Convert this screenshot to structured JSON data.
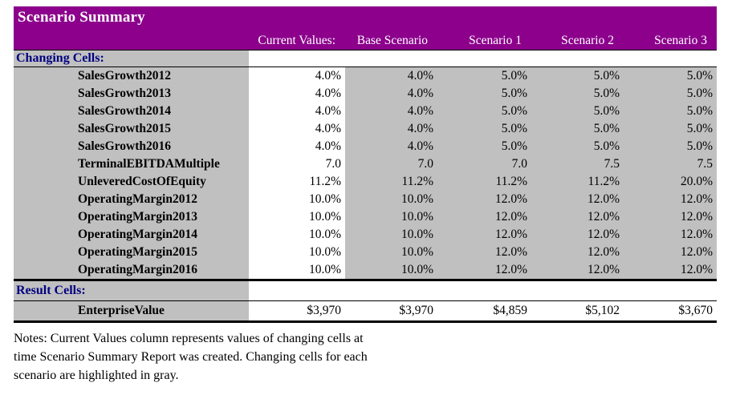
{
  "report": {
    "title": "Scenario Summary",
    "column_headers": [
      "Current Values:",
      "Base Scenario",
      "Scenario 1",
      "Scenario 2",
      "Scenario 3"
    ],
    "sections": [
      {
        "label": "Changing Cells:",
        "highlight_values": true,
        "rows": [
          {
            "label": "SalesGrowth2012",
            "values": [
              "4.0%",
              "4.0%",
              "5.0%",
              "5.0%",
              "5.0%"
            ]
          },
          {
            "label": "SalesGrowth2013",
            "values": [
              "4.0%",
              "4.0%",
              "5.0%",
              "5.0%",
              "5.0%"
            ]
          },
          {
            "label": "SalesGrowth2014",
            "values": [
              "4.0%",
              "4.0%",
              "5.0%",
              "5.0%",
              "5.0%"
            ]
          },
          {
            "label": "SalesGrowth2015",
            "values": [
              "4.0%",
              "4.0%",
              "5.0%",
              "5.0%",
              "5.0%"
            ]
          },
          {
            "label": "SalesGrowth2016",
            "values": [
              "4.0%",
              "4.0%",
              "5.0%",
              "5.0%",
              "5.0%"
            ]
          },
          {
            "label": "TerminalEBITDAMultiple",
            "values": [
              "7.0",
              "7.0",
              "7.0",
              "7.5",
              "7.5"
            ]
          },
          {
            "label": "UnleveredCostOfEquity",
            "values": [
              "11.2%",
              "11.2%",
              "11.2%",
              "11.2%",
              "20.0%"
            ]
          },
          {
            "label": "OperatingMargin2012",
            "values": [
              "10.0%",
              "10.0%",
              "12.0%",
              "12.0%",
              "12.0%"
            ]
          },
          {
            "label": "OperatingMargin2013",
            "values": [
              "10.0%",
              "10.0%",
              "12.0%",
              "12.0%",
              "12.0%"
            ]
          },
          {
            "label": "OperatingMargin2014",
            "values": [
              "10.0%",
              "10.0%",
              "12.0%",
              "12.0%",
              "12.0%"
            ]
          },
          {
            "label": "OperatingMargin2015",
            "values": [
              "10.0%",
              "10.0%",
              "12.0%",
              "12.0%",
              "12.0%"
            ]
          },
          {
            "label": "OperatingMargin2016",
            "values": [
              "10.0%",
              "10.0%",
              "12.0%",
              "12.0%",
              "12.0%"
            ]
          }
        ]
      },
      {
        "label": "Result Cells:",
        "highlight_values": false,
        "rows": [
          {
            "label": "EnterpriseValue",
            "values": [
              "$3,970",
              "$3,970",
              "$4,859",
              "$5,102",
              "$3,670"
            ]
          }
        ]
      }
    ],
    "notes_lines": [
      "Notes:  Current Values column represents values of changing cells at",
      "time Scenario Summary Report was created.  Changing cells for each",
      "scenario are highlighted in gray."
    ],
    "colors": {
      "header_purple": "#8C008C",
      "cell_gray": "#C0C0C0",
      "section_label_blue": "#000080"
    }
  }
}
